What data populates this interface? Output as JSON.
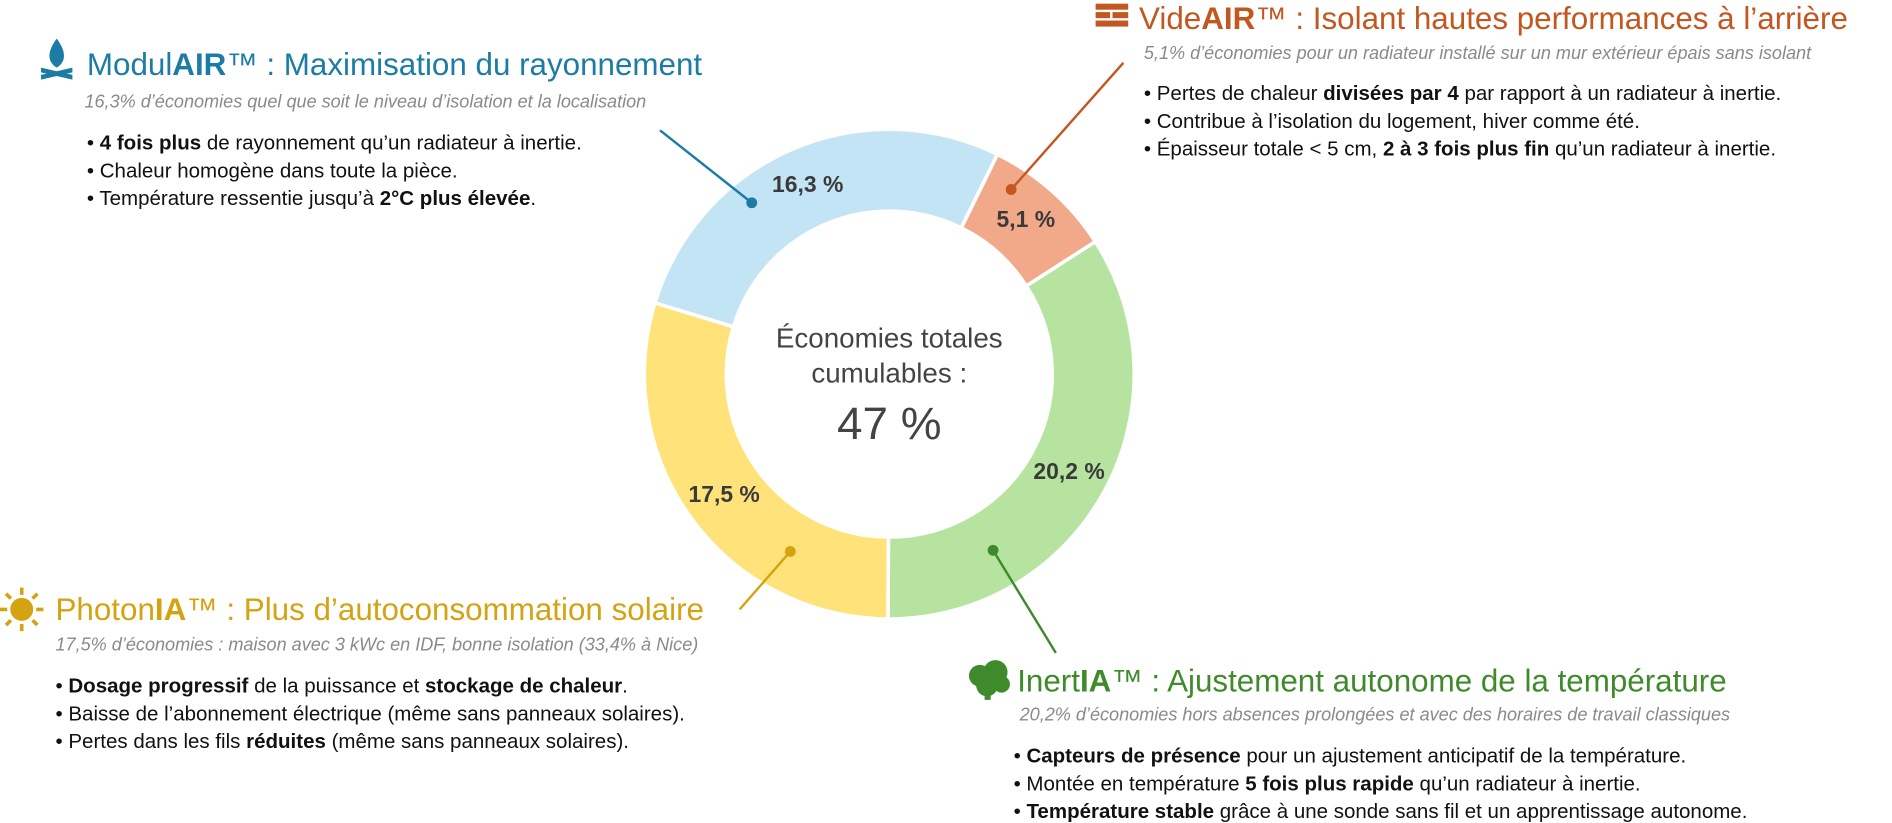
{
  "chart_data": {
    "type": "pie",
    "donut": true,
    "values": [
      5.1,
      20.2,
      17.5,
      16.3
    ],
    "value_labels": [
      "5,1 %",
      "20,2 %",
      "17,5 %",
      "16,3 %"
    ],
    "colors": [
      "#f2a98a",
      "#b6e4a0",
      "#ffe37a",
      "#c3e4f5"
    ],
    "center_text": [
      "Économies totales",
      "cumulables :"
    ],
    "total": 47,
    "total_label": "47 %"
  },
  "callouts": [
    {
      "color": "#c4561f",
      "title": [
        {
          "text": "Vide"
        },
        {
          "text": "AIR",
          "bold": true
        },
        {
          "text": "™ : Isolant hautes performances à l’arrière"
        }
      ],
      "subtitle": "5,1% d’économies pour un radiateur installé sur un mur extérieur épais sans isolant",
      "bullets": [
        [
          {
            "text": "• Pertes de chaleur "
          },
          {
            "text": "divisées par 4",
            "bold": true
          },
          {
            "text": " par rapport à un radiateur à inertie."
          }
        ],
        [
          {
            "text": "• Contribue à l’isolation du logement, hiver comme été."
          }
        ],
        [
          {
            "text": "• Épaisseur totale < 5 cm, "
          },
          {
            "text": "2 à 3 fois plus fin",
            "bold": true
          },
          {
            "text": " qu’un radiateur à inertie."
          }
        ]
      ]
    },
    {
      "color": "#3f8a2b",
      "title": [
        {
          "text": "Inert"
        },
        {
          "text": "IA",
          "bold": true
        },
        {
          "text": "™ : Ajustement autonome de la température"
        }
      ],
      "subtitle": "20,2% d’économies hors absences prolongées et avec des horaires de travail classiques",
      "bullets": [
        [
          {
            "text": "• "
          },
          {
            "text": "Capteurs de présence",
            "bold": true
          },
          {
            "text": " pour un ajustement anticipatif de la température."
          }
        ],
        [
          {
            "text": "• Montée en température "
          },
          {
            "text": "5 fois plus rapide",
            "bold": true
          },
          {
            "text": " qu’un radiateur à inertie."
          }
        ],
        [
          {
            "text": "• "
          },
          {
            "text": "Température stable",
            "bold": true
          },
          {
            "text": " grâce à une sonde sans fil et un apprentissage autonome."
          }
        ]
      ]
    },
    {
      "color": "#d5a312",
      "title": [
        {
          "text": "Photon"
        },
        {
          "text": "IA",
          "bold": true
        },
        {
          "text": "™ : Plus d’autoconsommation solaire"
        }
      ],
      "subtitle": "17,5% d’économies : maison avec 3 kWc en IDF, bonne isolation (33,4% à Nice)",
      "bullets": [
        [
          {
            "text": "• "
          },
          {
            "text": "Dosage progressif",
            "bold": true
          },
          {
            "text": " de la puissance et "
          },
          {
            "text": "stockage de chaleur",
            "bold": true
          },
          {
            "text": "."
          }
        ],
        [
          {
            "text": "• Baisse de l’abonnement électrique (même sans panneaux solaires)."
          }
        ],
        [
          {
            "text": "• Pertes dans les fils "
          },
          {
            "text": "réduites",
            "bold": true
          },
          {
            "text": " (même sans panneaux solaires)."
          }
        ]
      ]
    },
    {
      "color": "#1c7ca5",
      "title": [
        {
          "text": "Modul"
        },
        {
          "text": "AIR",
          "bold": true
        },
        {
          "text": "™ : Maximisation du rayonnement"
        }
      ],
      "subtitle": "16,3% d’économies quel que soit le niveau d’isolation et la localisation",
      "bullets": [
        [
          {
            "text": "• "
          },
          {
            "text": "4 fois plus",
            "bold": true
          },
          {
            "text": " de rayonnement qu’un radiateur à inertie."
          }
        ],
        [
          {
            "text": "• Chaleur homogène dans toute la pièce."
          }
        ],
        [
          {
            "text": "• Température ressentie jusqu’à "
          },
          {
            "text": "2°C plus élevée",
            "bold": true
          },
          {
            "text": "."
          }
        ]
      ]
    }
  ]
}
